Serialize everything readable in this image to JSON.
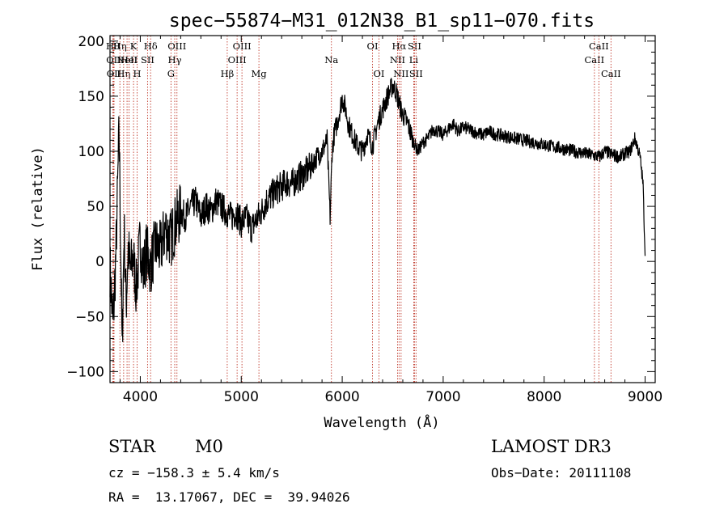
{
  "chart_data": {
    "type": "line",
    "title": "spec−55874−M31_012N38_B1_sp11−070.fits",
    "xlabel": "Wavelength (Å)",
    "ylabel": "Flux (relative)",
    "xlim": [
      3700,
      9100
    ],
    "ylim": [
      -110,
      205
    ],
    "xticks": [
      4000,
      5000,
      6000,
      7000,
      8000,
      9000
    ],
    "xtick_labels": [
      "4000",
      "5000",
      "6000",
      "7000",
      "8000",
      "9000"
    ],
    "yticks": [
      -100,
      -50,
      0,
      50,
      100,
      150,
      200
    ],
    "ytick_labels": [
      "−100",
      "−50",
      "0",
      "50",
      "100",
      "150",
      "200"
    ],
    "series": [
      {
        "name": "flux",
        "x": [
          3700,
          3730,
          3760,
          3790,
          3820,
          3840,
          3860,
          3880,
          3900,
          3930,
          3960,
          4000,
          4030,
          4060,
          4100,
          4150,
          4200,
          4250,
          4300,
          4350,
          4400,
          4450,
          4500,
          4550,
          4600,
          4650,
          4700,
          4750,
          4800,
          4850,
          4900,
          4950,
          5000,
          5050,
          5100,
          5150,
          5200,
          5250,
          5300,
          5350,
          5400,
          5450,
          5500,
          5550,
          5600,
          5650,
          5700,
          5750,
          5800,
          5850,
          5880,
          5900,
          5920,
          5960,
          6000,
          6030,
          6060,
          6100,
          6150,
          6200,
          6250,
          6300,
          6350,
          6400,
          6450,
          6500,
          6530,
          6560,
          6590,
          6620,
          6650,
          6700,
          6750,
          6800,
          6850,
          6900,
          6950,
          7000,
          7050,
          7100,
          7150,
          7200,
          7250,
          7300,
          7350,
          7400,
          7450,
          7500,
          7600,
          7700,
          7800,
          7900,
          8000,
          8100,
          8200,
          8300,
          8400,
          8500,
          8550,
          8600,
          8650,
          8700,
          8750,
          8800,
          8850,
          8900,
          8950,
          8980,
          9000
        ],
        "y": [
          -5,
          -60,
          10,
          120,
          -80,
          30,
          -40,
          15,
          -10,
          5,
          -25,
          20,
          -10,
          10,
          -5,
          15,
          10,
          30,
          20,
          35,
          45,
          40,
          50,
          55,
          40,
          50,
          45,
          55,
          50,
          45,
          40,
          45,
          35,
          40,
          30,
          38,
          45,
          55,
          60,
          65,
          68,
          72,
          70,
          75,
          78,
          82,
          88,
          95,
          100,
          110,
          40,
          100,
          115,
          130,
          148,
          140,
          125,
          115,
          105,
          100,
          115,
          105,
          125,
          138,
          150,
          160,
          155,
          145,
          135,
          130,
          125,
          110,
          100,
          108,
          112,
          120,
          118,
          115,
          120,
          125,
          118,
          122,
          120,
          118,
          116,
          115,
          118,
          116,
          114,
          112,
          110,
          108,
          106,
          104,
          102,
          100,
          98,
          96,
          95,
          100,
          98,
          96,
          95,
          98,
          100,
          112,
          95,
          70,
          5
        ]
      }
    ],
    "line_markers": [
      {
        "x": 3728,
        "row": 1,
        "label": "Hθ"
      },
      {
        "x": 3736,
        "row": 2,
        "label": "OII"
      },
      {
        "x": 3740,
        "row": 3,
        "label": "OII"
      },
      {
        "x": 3798,
        "row": 1,
        "label": "Hη"
      },
      {
        "x": 3835,
        "row": 3,
        "label": "Hη"
      },
      {
        "x": 3869,
        "row": 2,
        "label": "NeII"
      },
      {
        "x": 3889,
        "row": 2,
        "label": "HeI"
      },
      {
        "x": 3933,
        "row": 1,
        "label": "K"
      },
      {
        "x": 3969,
        "row": 3,
        "label": "H"
      },
      {
        "x": 4072,
        "row": 2,
        "label": "SII"
      },
      {
        "x": 4102,
        "row": 1,
        "label": "Hδ"
      },
      {
        "x": 4304,
        "row": 3,
        "label": "G"
      },
      {
        "x": 4341,
        "row": 2,
        "label": "Hγ"
      },
      {
        "x": 4363,
        "row": 1,
        "label": "OIII"
      },
      {
        "x": 4861,
        "row": 3,
        "label": "Hβ"
      },
      {
        "x": 4959,
        "row": 2,
        "label": "OIII"
      },
      {
        "x": 5007,
        "row": 1,
        "label": "OIII"
      },
      {
        "x": 5175,
        "row": 3,
        "label": "Mg"
      },
      {
        "x": 5893,
        "row": 2,
        "label": "Na"
      },
      {
        "x": 6300,
        "row": 1,
        "label": "OI"
      },
      {
        "x": 6364,
        "row": 3,
        "label": "OI"
      },
      {
        "x": 6548,
        "row": 2,
        "label": "NII"
      },
      {
        "x": 6563,
        "row": 1,
        "label": "Hα"
      },
      {
        "x": 6583,
        "row": 3,
        "label": "NII"
      },
      {
        "x": 6708,
        "row": 2,
        "label": "Li"
      },
      {
        "x": 6716,
        "row": 1,
        "label": "SII"
      },
      {
        "x": 6731,
        "row": 3,
        "label": "SII"
      },
      {
        "x": 8498,
        "row": 2,
        "label": "CaII"
      },
      {
        "x": 8542,
        "row": 1,
        "label": "CaII"
      },
      {
        "x": 8662,
        "row": 3,
        "label": "CaII"
      }
    ],
    "marker_color": "#c0392b"
  },
  "info": {
    "class": "STAR",
    "subclass": "M0",
    "survey": "LAMOST DR3",
    "cz": "cz = −158.3 ± 5.4 km/s",
    "obs_date": "Obs−Date: 20111108",
    "radec": "RA =  13.17067, DEC =  39.94026"
  }
}
